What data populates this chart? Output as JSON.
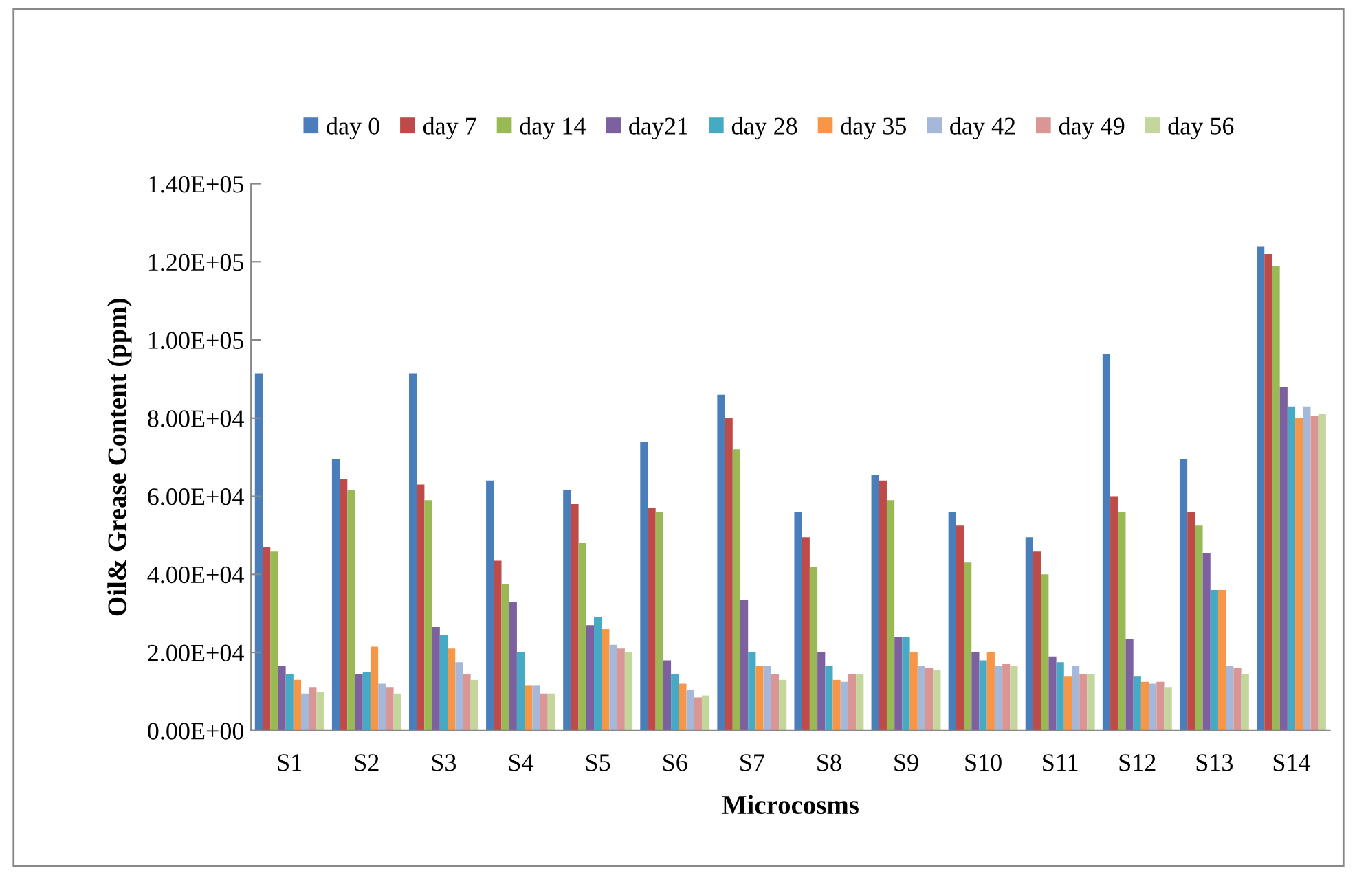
{
  "chart_data": {
    "type": "bar",
    "xlabel": "Microcosms",
    "ylabel": "Oil& Grease Content (ppm)",
    "categories": [
      "S1",
      "S2",
      "S3",
      "S4",
      "S5",
      "S6",
      "S7",
      "S8",
      "S9",
      "S10",
      "S11",
      "S12",
      "S13",
      "S14"
    ],
    "series": [
      {
        "name": "day 0",
        "color": "#4a7ebb",
        "values": [
          91500,
          69500,
          91500,
          64000,
          61500,
          74000,
          86000,
          56000,
          65500,
          56000,
          49500,
          96500,
          69500,
          124000
        ]
      },
      {
        "name": "day 7",
        "color": "#be4b48",
        "values": [
          47000,
          64500,
          63000,
          43500,
          58000,
          57000,
          80000,
          49500,
          64000,
          52500,
          46000,
          60000,
          56000,
          122000
        ]
      },
      {
        "name": "day 14",
        "color": "#98b954",
        "values": [
          46000,
          61500,
          59000,
          37500,
          48000,
          56000,
          72000,
          42000,
          59000,
          43000,
          40000,
          56000,
          52500,
          119000
        ]
      },
      {
        "name": "day21",
        "color": "#7d60a0",
        "values": [
          16500,
          14500,
          26500,
          33000,
          27000,
          18000,
          33500,
          20000,
          24000,
          20000,
          19000,
          23500,
          45500,
          88000
        ]
      },
      {
        "name": "day 28",
        "color": "#46aac5",
        "values": [
          14500,
          15000,
          24500,
          20000,
          29000,
          14500,
          20000,
          16500,
          24000,
          18000,
          17500,
          14000,
          36000,
          83000
        ]
      },
      {
        "name": "day 35",
        "color": "#f79646",
        "values": [
          13000,
          21500,
          21000,
          11500,
          26000,
          12000,
          16500,
          13000,
          20000,
          20000,
          14000,
          12500,
          36000,
          80000
        ]
      },
      {
        "name": "day 42",
        "color": "#a5b8d9",
        "values": [
          9500,
          12000,
          17500,
          11500,
          22000,
          10500,
          16500,
          12500,
          16500,
          16500,
          16500,
          12000,
          16500,
          83000
        ]
      },
      {
        "name": "day 49",
        "color": "#d99694",
        "values": [
          11000,
          11000,
          14500,
          9500,
          21000,
          8500,
          14500,
          14500,
          16000,
          17000,
          14500,
          12500,
          16000,
          80500
        ]
      },
      {
        "name": "day 56",
        "color": "#c3d69b",
        "values": [
          10000,
          9500,
          13000,
          9500,
          20000,
          9000,
          13000,
          14500,
          15500,
          16500,
          14500,
          11000,
          14500,
          81000
        ]
      }
    ],
    "ylim": [
      0,
      140000
    ],
    "yticks": [
      {
        "value": 0,
        "label": "0.00E+00"
      },
      {
        "value": 20000,
        "label": "2.00E+04"
      },
      {
        "value": 40000,
        "label": "4.00E+04"
      },
      {
        "value": 60000,
        "label": "6.00E+04"
      },
      {
        "value": 80000,
        "label": "8.00E+04"
      },
      {
        "value": 100000,
        "label": "1.00E+05"
      },
      {
        "value": 120000,
        "label": "1.20E+05"
      },
      {
        "value": 140000,
        "label": "1.40E+05"
      }
    ],
    "grid": false,
    "legend": "top"
  }
}
